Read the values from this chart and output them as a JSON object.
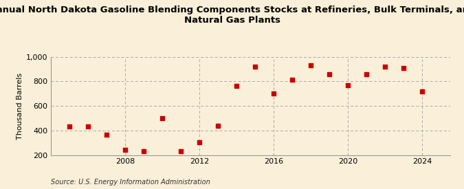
{
  "title": "Annual North Dakota Gasoline Blending Components Stocks at Refineries, Bulk Terminals, and\nNatural Gas Plants",
  "ylabel": "Thousand Barrels",
  "source": "Source: U.S. Energy Information Administration",
  "background_color": "#faefd8",
  "marker_color": "#cc0000",
  "years": [
    2005,
    2006,
    2007,
    2008,
    2009,
    2010,
    2011,
    2012,
    2013,
    2014,
    2015,
    2016,
    2017,
    2018,
    2019,
    2020,
    2021,
    2022,
    2023,
    2024
  ],
  "values": [
    430,
    430,
    365,
    240,
    230,
    500,
    230,
    305,
    440,
    760,
    920,
    700,
    810,
    930,
    855,
    770,
    855,
    920,
    910,
    720
  ],
  "xlim": [
    2004,
    2025.5
  ],
  "ylim": [
    200,
    1000
  ],
  "yticks": [
    200,
    400,
    600,
    800,
    1000
  ],
  "xticks": [
    2008,
    2012,
    2016,
    2020,
    2024
  ],
  "grid_color": "#aaaaaa",
  "title_fontsize": 9.5,
  "axis_fontsize": 8,
  "tick_fontsize": 8,
  "source_fontsize": 7
}
